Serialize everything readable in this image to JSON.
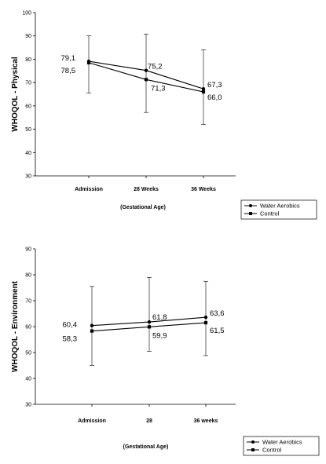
{
  "chart_data": [
    {
      "type": "line",
      "ylabel": "WHOQOL - Physical",
      "xlabel": "(Gestational Age)",
      "categories": [
        "Admission",
        "28 Weeks",
        "36 Weeks"
      ],
      "ylim": [
        30,
        100
      ],
      "yticks": [
        30,
        40,
        50,
        60,
        70,
        80,
        90,
        100
      ],
      "grid": false,
      "legend_position": "bottom-right",
      "series": [
        {
          "name": "Water Aerobics",
          "marker": "circle",
          "values": [
            79.1,
            75.2,
            67.3
          ],
          "labels": [
            "79,1",
            "75,2",
            "67,3"
          ],
          "error_low": [
            65.5,
            57.2,
            52
          ],
          "error_high": [
            90,
            90.8,
            84
          ]
        },
        {
          "name": "Control",
          "marker": "square",
          "values": [
            78.5,
            71.3,
            66.0
          ],
          "labels": [
            "78,5",
            "71,3",
            "66,0"
          ]
        }
      ]
    },
    {
      "type": "line",
      "ylabel": "WHOQOL - Environment",
      "xlabel": "(Gestational Age)",
      "categories": [
        "Admission",
        "28",
        "36 weeks"
      ],
      "ylim": [
        30,
        90
      ],
      "yticks": [
        30,
        40,
        50,
        60,
        70,
        80,
        90
      ],
      "grid": false,
      "legend_position": "bottom-right",
      "series": [
        {
          "name": "Water Aerobics",
          "marker": "circle",
          "values": [
            60.4,
            61.8,
            63.6
          ],
          "labels": [
            "60,4",
            "61,8",
            "63,6"
          ],
          "error_low": [
            45,
            50.5,
            48.8
          ],
          "error_high": [
            75.5,
            79,
            77.5
          ]
        },
        {
          "name": "Control",
          "marker": "square",
          "values": [
            58.3,
            59.9,
            61.5
          ],
          "labels": [
            "58,3",
            "59,9",
            "61,5"
          ]
        }
      ]
    }
  ]
}
